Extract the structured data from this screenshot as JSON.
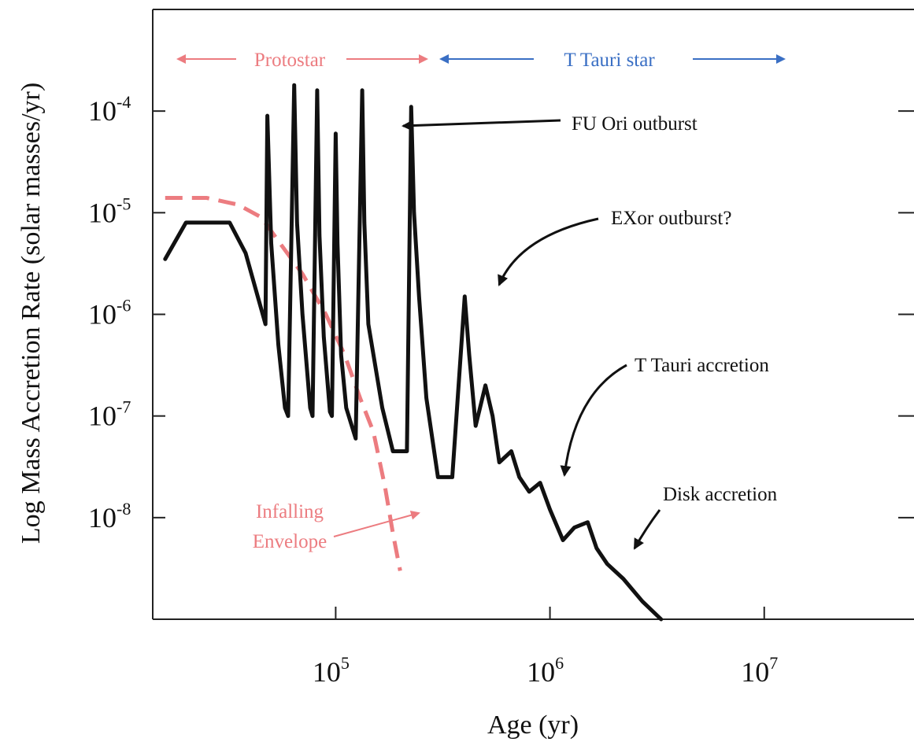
{
  "chart_data": {
    "type": "line",
    "title": "",
    "xlabel": "Age (yr)",
    "ylabel": "Log Mass Accretion Rate  (solar masses/yr)",
    "xscale": "log",
    "yscale": "log",
    "xlim": [
      14000,
      50000000
    ],
    "ylim": [
      1e-09,
      0.001
    ],
    "x_ticks": [
      {
        "value": 100000,
        "base": "10",
        "exp": "5"
      },
      {
        "value": 1000000,
        "base": "10",
        "exp": "6"
      },
      {
        "value": 10000000,
        "base": "10",
        "exp": "7"
      }
    ],
    "y_ticks": [
      {
        "value": 0.0001,
        "base": "10",
        "exp": "-4"
      },
      {
        "value": 1e-05,
        "base": "10",
        "exp": "-5"
      },
      {
        "value": 1e-06,
        "base": "10",
        "exp": "-6"
      },
      {
        "value": 1e-07,
        "base": "10",
        "exp": "-7"
      },
      {
        "value": 1e-08,
        "base": "10",
        "exp": "-8"
      }
    ],
    "grid": false,
    "series": [
      {
        "color": "#111111",
        "points": [
          [
            16000,
            3.5e-06
          ],
          [
            20000,
            8e-06
          ],
          [
            32000,
            8e-06
          ],
          [
            38000,
            4e-06
          ],
          [
            47000,
            8e-07
          ],
          [
            48000,
            9e-05
          ],
          [
            50000,
            5e-06
          ],
          [
            54000,
            5e-07
          ],
          [
            58000,
            1.2e-07
          ],
          [
            60000,
            1e-07
          ],
          [
            64000,
            0.00018
          ],
          [
            66000,
            8e-06
          ],
          [
            70000,
            1e-06
          ],
          [
            76000,
            1.2e-07
          ],
          [
            78000,
            1e-07
          ],
          [
            82000,
            0.00016
          ],
          [
            84000,
            6e-06
          ],
          [
            88000,
            6e-07
          ],
          [
            94000,
            1.1e-07
          ],
          [
            96000,
            1e-07
          ],
          [
            100000,
            6e-05
          ],
          [
            102000,
            5e-06
          ],
          [
            106000,
            4e-07
          ],
          [
            112000,
            1.2e-07
          ],
          [
            124000,
            6e-08
          ],
          [
            133000,
            0.00016
          ],
          [
            136000,
            8e-06
          ],
          [
            142000,
            8e-07
          ],
          [
            165000,
            1.2e-07
          ],
          [
            185000,
            4.5e-08
          ],
          [
            215000,
            4.5e-08
          ],
          [
            225000,
            0.00011
          ],
          [
            232000,
            1e-05
          ],
          [
            245000,
            1.5e-06
          ],
          [
            265000,
            1.5e-07
          ],
          [
            300000,
            2.5e-08
          ],
          [
            350000,
            2.5e-08
          ],
          [
            400000,
            1.5e-06
          ],
          [
            420000,
            4e-07
          ],
          [
            450000,
            8e-08
          ],
          [
            500000,
            2e-07
          ],
          [
            540000,
            1e-07
          ],
          [
            580000,
            3.5e-08
          ],
          [
            660000,
            4.5e-08
          ],
          [
            720000,
            2.5e-08
          ],
          [
            800000,
            1.8e-08
          ],
          [
            900000,
            2.2e-08
          ],
          [
            1000000,
            1.2e-08
          ],
          [
            1150000,
            6e-09
          ],
          [
            1300000,
            8e-09
          ],
          [
            1500000,
            9e-09
          ],
          [
            1650000,
            5e-09
          ],
          [
            1850000,
            3.5e-09
          ],
          [
            2200000,
            2.5e-09
          ],
          [
            2700000,
            1.5e-09
          ],
          [
            3300000,
            1e-09
          ]
        ]
      },
      {
        "color": "#ec7c80",
        "dashed": true,
        "points": [
          [
            16000,
            1.4e-05
          ],
          [
            25000,
            1.4e-05
          ],
          [
            35000,
            1.2e-05
          ],
          [
            45000,
            9e-06
          ],
          [
            55000,
            5e-06
          ],
          [
            70000,
            2.5e-06
          ],
          [
            90000,
            1e-06
          ],
          [
            110000,
            4e-07
          ],
          [
            130000,
            1.5e-07
          ],
          [
            150000,
            7e-08
          ],
          [
            170000,
            2e-08
          ],
          [
            185000,
            7e-09
          ],
          [
            200000,
            3e-09
          ]
        ]
      }
    ],
    "annotations": {
      "protostar": "Protostar",
      "t_tauri_star": "T Tauri star",
      "fu_ori": "FU  Ori  outburst",
      "exor": "EXor outburst?",
      "t_tauri_accretion": "T  Tauri  accretion",
      "disk_accretion": "Disk accretion",
      "infalling_line1": "Infalling",
      "infalling_line2": "Envelope"
    },
    "colors": {
      "protostar": "#ec7c80",
      "t_tauri_star": "#3a6fc4",
      "curve": "#111111",
      "envelope": "#ec7c80"
    }
  }
}
